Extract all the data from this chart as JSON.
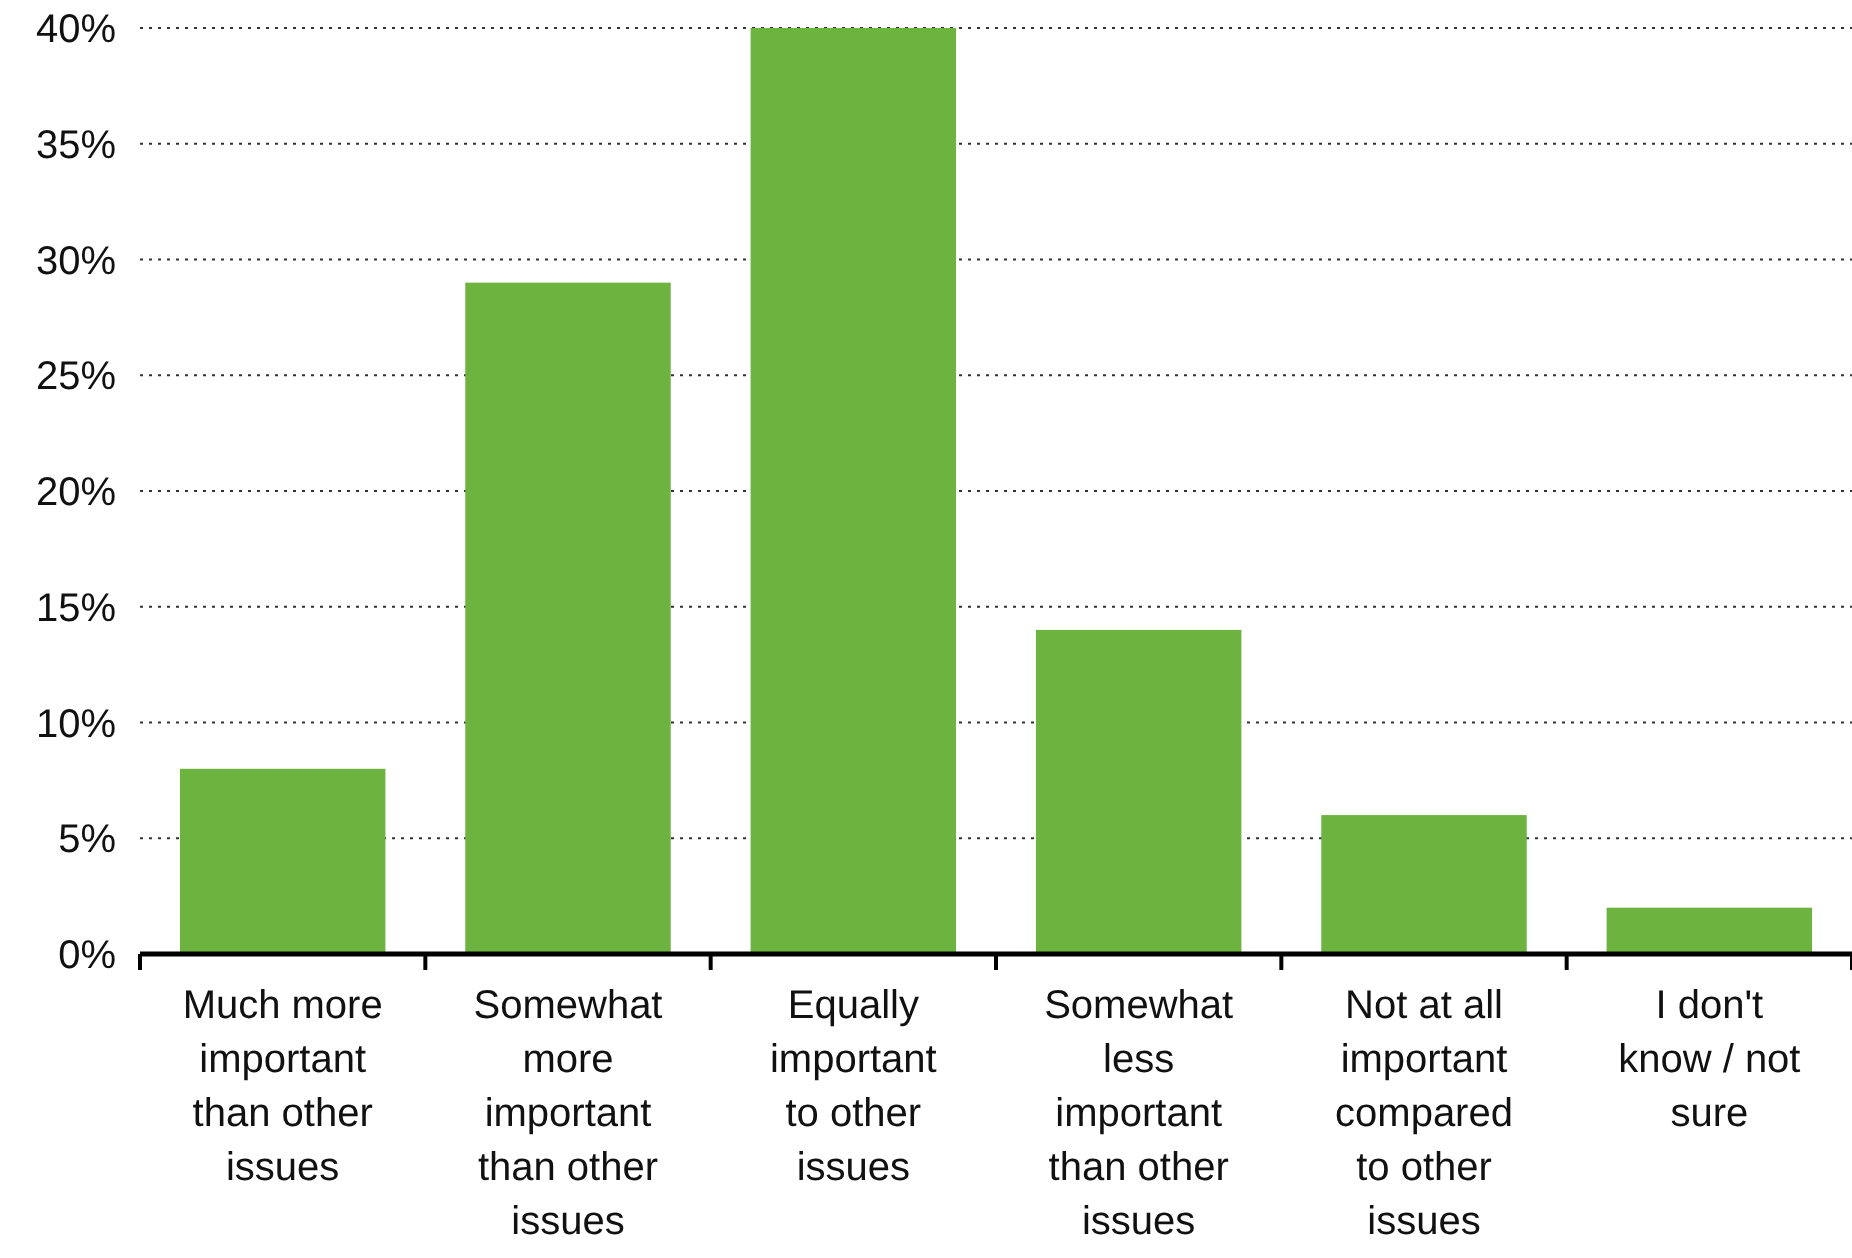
{
  "chart_data": {
    "type": "bar",
    "categories": [
      "Much more important than other issues",
      "Somewhat more important than other issues",
      "Equally important to other issues",
      "Somewhat less important than other issues",
      "Not at all important compared to other issues",
      "I don't know / not sure"
    ],
    "values": [
      8,
      29,
      40,
      14,
      6,
      2
    ],
    "color": "#6db33f",
    "ylim": [
      0,
      40
    ],
    "yticks": [
      {
        "value": 0,
        "label": "0%"
      },
      {
        "value": 5,
        "label": "5%"
      },
      {
        "value": 10,
        "label": "10%"
      },
      {
        "value": 15,
        "label": "15%"
      },
      {
        "value": 20,
        "label": "20%"
      },
      {
        "value": 25,
        "label": "25%"
      },
      {
        "value": 30,
        "label": "30%"
      },
      {
        "value": 35,
        "label": "35%"
      },
      {
        "value": 40,
        "label": "40%"
      }
    ],
    "grid": "y"
  }
}
